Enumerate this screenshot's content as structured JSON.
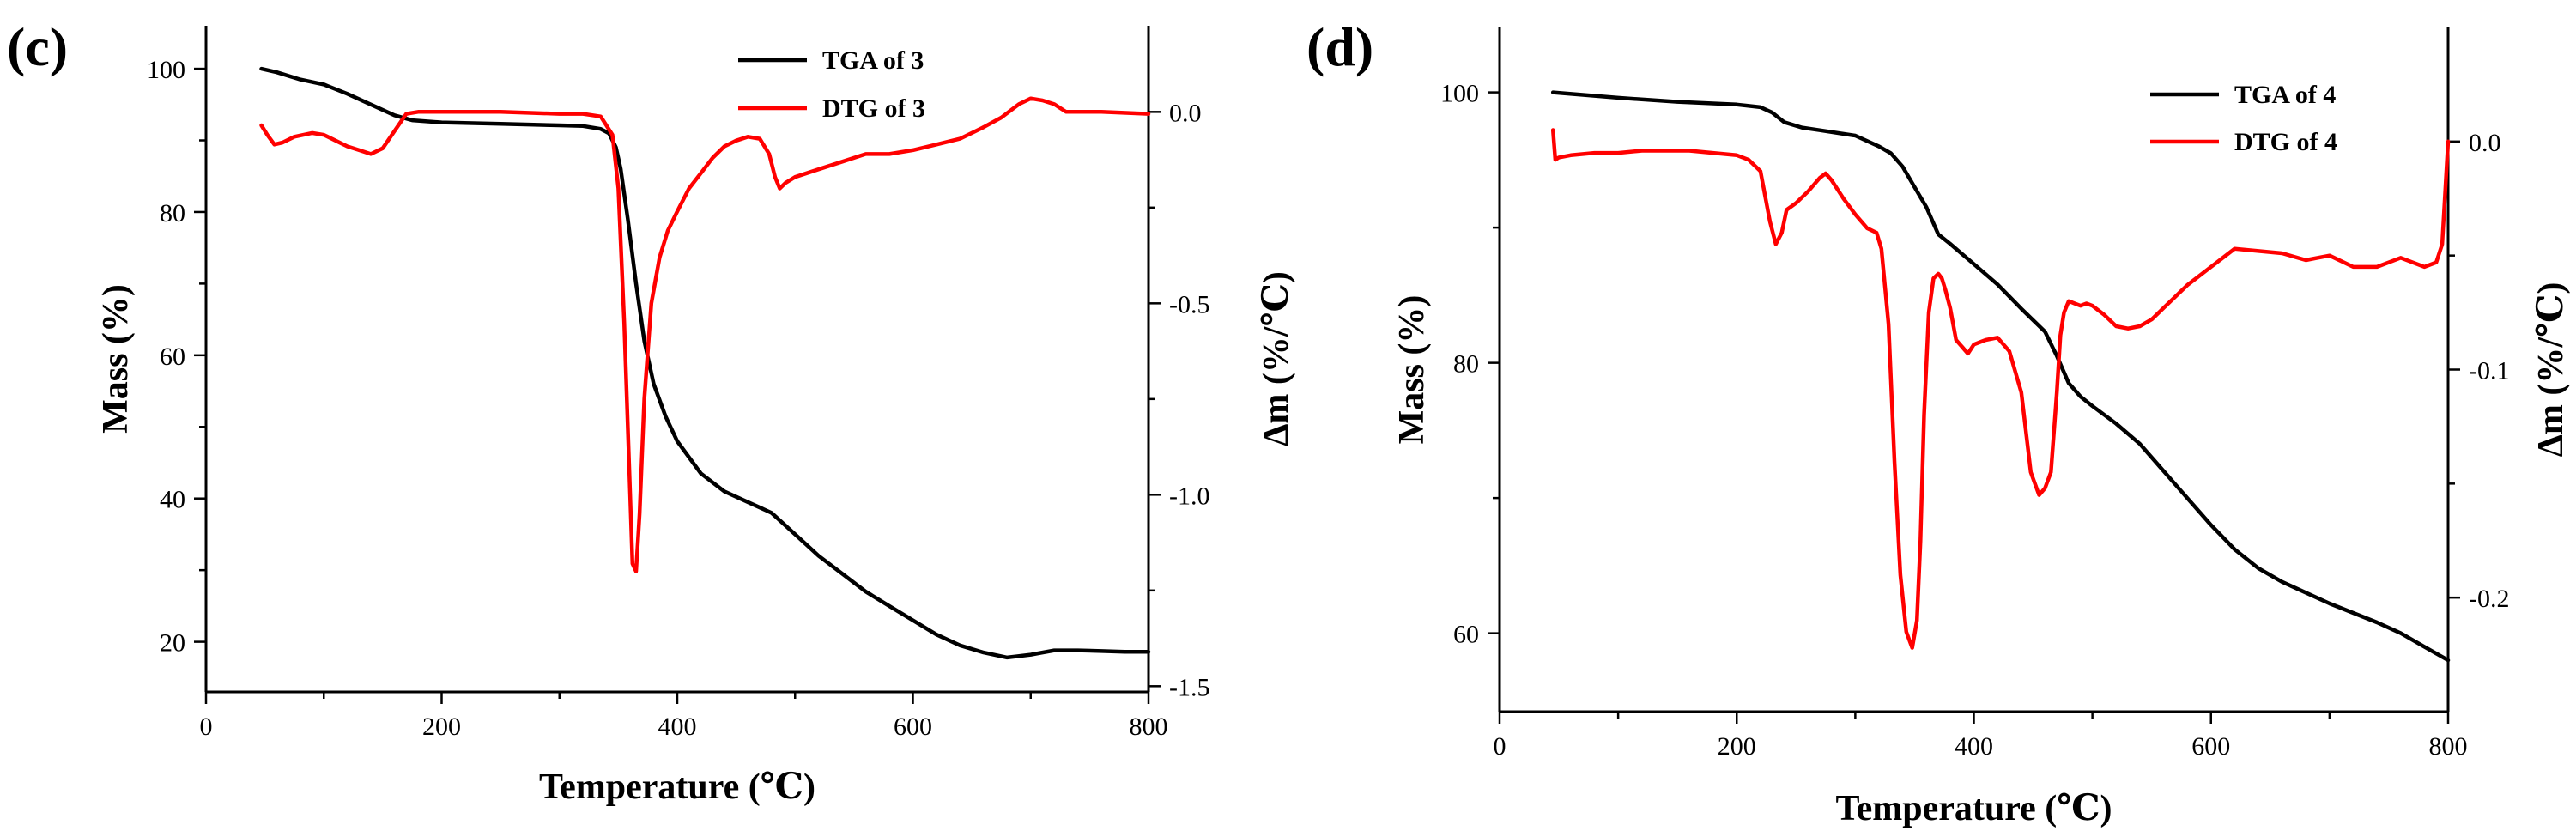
{
  "chart_data": [
    {
      "type": "line",
      "panel_label": "(c)",
      "xlabel": "Temperature (℃)",
      "ylabel": "Mass (%)",
      "y2label": "Δm (%/℃)",
      "xlim": [
        0,
        800
      ],
      "ylim": [
        13,
        106
      ],
      "y2lim": [
        -1.515,
        0.225
      ],
      "xticks": [
        0,
        200,
        400,
        600,
        800
      ],
      "yticks": [
        20,
        40,
        60,
        80,
        100
      ],
      "y2ticks": [
        0.0,
        -0.5,
        -1.0,
        -1.5
      ],
      "xtick_labels": [
        "0",
        "200",
        "400",
        "600",
        "800"
      ],
      "ytick_labels": [
        "20",
        "40",
        "60",
        "80",
        "100"
      ],
      "y2tick_labels": [
        "0.0",
        "-0.5",
        "-1.0",
        "-1.5"
      ],
      "legend_position": "top-right",
      "series": [
        {
          "name": "TGA of 3",
          "axis": "left",
          "color": "#000000",
          "x": [
            47,
            60,
            80,
            100,
            120,
            140,
            160,
            175,
            200,
            250,
            300,
            320,
            335,
            342,
            348,
            352,
            358,
            365,
            372,
            380,
            390,
            400,
            420,
            440,
            460,
            480,
            500,
            520,
            540,
            560,
            580,
            600,
            620,
            640,
            660,
            680,
            700,
            720,
            740,
            760,
            780,
            800
          ],
          "y": [
            100,
            99.5,
            98.5,
            97.8,
            96.5,
            95,
            93.5,
            92.8,
            92.5,
            92.3,
            92.1,
            92.0,
            91.6,
            91.0,
            89,
            86,
            79,
            70,
            62,
            56,
            51.5,
            48,
            43.5,
            41,
            39.5,
            38,
            35,
            32,
            29.5,
            27,
            25,
            23,
            21,
            19.5,
            18.5,
            17.8,
            18.2,
            18.8,
            18.8,
            18.7,
            18.6,
            18.6
          ]
        },
        {
          "name": "DTG of 3",
          "axis": "right",
          "color": "#ff0000",
          "x": [
            47,
            52,
            58,
            65,
            75,
            90,
            100,
            110,
            120,
            130,
            140,
            150,
            160,
            170,
            180,
            200,
            250,
            300,
            320,
            335,
            345,
            350,
            355,
            360,
            362,
            365,
            368,
            372,
            378,
            385,
            392,
            400,
            410,
            420,
            430,
            440,
            450,
            460,
            470,
            478,
            483,
            487,
            492,
            500,
            520,
            540,
            560,
            580,
            600,
            620,
            640,
            660,
            675,
            690,
            700,
            710,
            720,
            730,
            760,
            800
          ],
          "y": [
            -0.035,
            -0.06,
            -0.085,
            -0.08,
            -0.065,
            -0.055,
            -0.06,
            -0.075,
            -0.09,
            -0.1,
            -0.11,
            -0.095,
            -0.05,
            -0.005,
            0.0,
            0.0,
            0.0,
            -0.005,
            -0.005,
            -0.012,
            -0.06,
            -0.2,
            -0.55,
            -1.0,
            -1.18,
            -1.2,
            -1.05,
            -0.75,
            -0.5,
            -0.38,
            -0.31,
            -0.26,
            -0.2,
            -0.16,
            -0.12,
            -0.09,
            -0.075,
            -0.065,
            -0.07,
            -0.11,
            -0.17,
            -0.2,
            -0.185,
            -0.17,
            -0.15,
            -0.13,
            -0.11,
            -0.11,
            -0.1,
            -0.085,
            -0.07,
            -0.04,
            -0.015,
            0.02,
            0.035,
            0.03,
            0.02,
            0.0,
            0.0,
            -0.005
          ]
        }
      ]
    },
    {
      "type": "line",
      "panel_label": "(d)",
      "xlabel": "Temperature (℃)",
      "ylabel": "Mass (%)",
      "y2label": "Δm (%/℃)",
      "xlim": [
        0,
        800
      ],
      "ylim": [
        54.2,
        104.8
      ],
      "y2lim": [
        -0.25,
        0.05
      ],
      "xticks": [
        0,
        200,
        400,
        600,
        800
      ],
      "yticks": [
        60,
        80,
        100
      ],
      "y2ticks": [
        0.0,
        -0.1,
        -0.2
      ],
      "xtick_labels": [
        "0",
        "200",
        "400",
        "600",
        "800"
      ],
      "ytick_labels": [
        "60",
        "80",
        "100"
      ],
      "y2tick_labels": [
        "0.0",
        "-0.1",
        "-0.2"
      ],
      "legend_position": "top-right",
      "series": [
        {
          "name": "TGA of 4",
          "axis": "left",
          "color": "#000000",
          "x": [
            45,
            100,
            150,
            200,
            220,
            230,
            240,
            255,
            270,
            300,
            320,
            330,
            340,
            350,
            360,
            370,
            380,
            400,
            420,
            440,
            460,
            470,
            480,
            490,
            500,
            520,
            540,
            560,
            580,
            600,
            620,
            640,
            660,
            680,
            700,
            720,
            740,
            760,
            780,
            800
          ],
          "y": [
            100,
            99.6,
            99.3,
            99.1,
            98.9,
            98.5,
            97.8,
            97.4,
            97.2,
            96.8,
            96.0,
            95.5,
            94.5,
            93,
            91.5,
            89.5,
            88.8,
            87.3,
            85.8,
            84,
            82.3,
            80.5,
            78.5,
            77.5,
            76.8,
            75.5,
            74.0,
            72.0,
            70.0,
            68.0,
            66.2,
            64.8,
            63.8,
            63.0,
            62.2,
            61.5,
            60.8,
            60.0,
            59.0,
            58.0
          ]
        },
        {
          "name": "DTG of 4",
          "axis": "right",
          "color": "#ff0000",
          "x": [
            45,
            47,
            50,
            60,
            80,
            100,
            120,
            140,
            160,
            180,
            200,
            210,
            220,
            228,
            233,
            238,
            242,
            250,
            260,
            270,
            275,
            280,
            290,
            300,
            310,
            318,
            322,
            328,
            333,
            338,
            343,
            348,
            352,
            355,
            358,
            362,
            366,
            370,
            373,
            376,
            380,
            385,
            390,
            395,
            400,
            405,
            410,
            420,
            430,
            440,
            448,
            455,
            460,
            465,
            470,
            473,
            476,
            480,
            485,
            490,
            495,
            500,
            510,
            520,
            530,
            540,
            550,
            560,
            570,
            580,
            600,
            620,
            640,
            660,
            680,
            690,
            700,
            720,
            740,
            760,
            780,
            790,
            795,
            800
          ],
          "y": [
            0.005,
            -0.008,
            -0.007,
            -0.006,
            -0.005,
            -0.005,
            -0.004,
            -0.004,
            -0.004,
            -0.005,
            -0.006,
            -0.008,
            -0.013,
            -0.035,
            -0.045,
            -0.04,
            -0.03,
            -0.027,
            -0.022,
            -0.016,
            -0.014,
            -0.017,
            -0.025,
            -0.032,
            -0.038,
            -0.04,
            -0.047,
            -0.08,
            -0.14,
            -0.19,
            -0.215,
            -0.222,
            -0.21,
            -0.175,
            -0.12,
            -0.075,
            -0.06,
            -0.058,
            -0.06,
            -0.065,
            -0.073,
            -0.087,
            -0.09,
            -0.093,
            -0.089,
            -0.088,
            -0.087,
            -0.086,
            -0.092,
            -0.11,
            -0.145,
            -0.155,
            -0.152,
            -0.145,
            -0.11,
            -0.085,
            -0.075,
            -0.07,
            -0.071,
            -0.072,
            -0.071,
            -0.072,
            -0.076,
            -0.081,
            -0.082,
            -0.081,
            -0.078,
            -0.073,
            -0.068,
            -0.063,
            -0.055,
            -0.047,
            -0.048,
            -0.049,
            -0.052,
            -0.051,
            -0.05,
            -0.055,
            -0.055,
            -0.051,
            -0.055,
            -0.053,
            -0.045,
            0.0
          ]
        }
      ]
    }
  ]
}
